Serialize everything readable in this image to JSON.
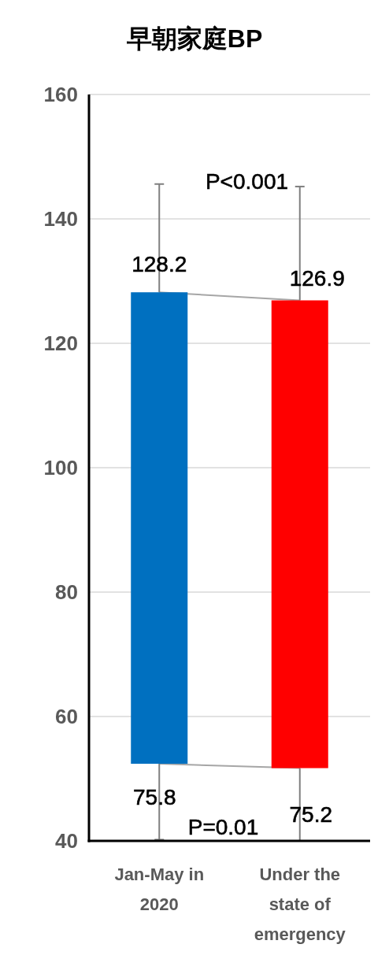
{
  "chart_data": {
    "type": "bar",
    "title": "早朝家庭BP",
    "categories": [
      "Jan-May in 2020",
      "Under the state of emergency"
    ],
    "series": [
      {
        "type": "line",
        "color": "#a6a6a6",
        "values": [
          128.2,
          126.9
        ],
        "errors": [
          [
            128.2,
            145.6
          ],
          [
            126.9,
            145.2
          ]
        ]
      },
      {
        "type": "line",
        "color": "#a6a6a6",
        "values": [
          52.4,
          51.7
        ],
        "errors": [
          [
            40.2,
            52.4
          ],
          [
            40,
            51.7
          ]
        ]
      },
      {
        "colors": [
          "#0070c0",
          "#ff0000"
        ],
        "values": [
          75.8,
          75.2
        ],
        "base": [
          52.4,
          51.7
        ],
        "value_labels": [
          "75.8",
          "75.2"
        ]
      }
    ],
    "ylim": [
      40,
      160
    ],
    "yticks": [
      40,
      60,
      80,
      100,
      120,
      140,
      160
    ],
    "grid": "y",
    "annotations": [
      {
        "text": "128.2",
        "x": "Jan-May in 2020",
        "y": 128.2
      },
      {
        "text": "126.9",
        "x": "Under the state of emergency",
        "y": 126.9
      },
      "P<0.001",
      "P=0.01"
    ]
  }
}
